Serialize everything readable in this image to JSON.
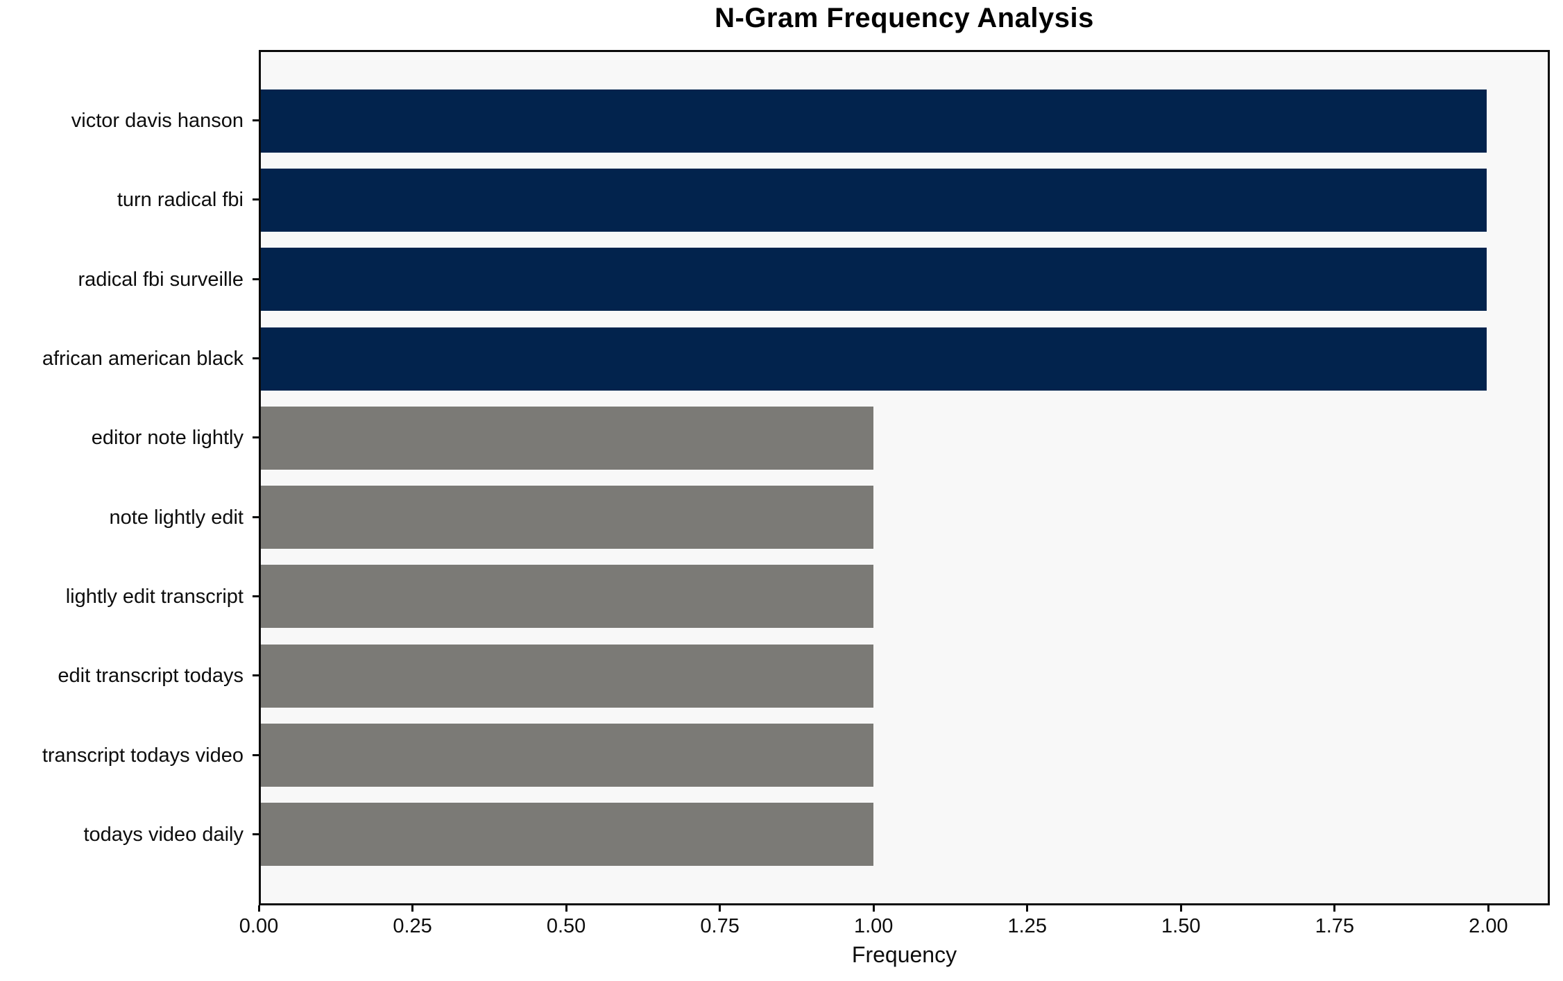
{
  "chart_data": {
    "type": "bar",
    "orientation": "horizontal",
    "title": "N-Gram Frequency Analysis",
    "xlabel": "Frequency",
    "ylabel": "",
    "categories": [
      "victor davis hanson",
      "turn radical fbi",
      "radical fbi surveille",
      "african american black",
      "editor note lightly",
      "note lightly edit",
      "lightly edit transcript",
      "edit transcript todays",
      "transcript todays video",
      "todays video daily"
    ],
    "values": [
      2,
      2,
      2,
      2,
      1,
      1,
      1,
      1,
      1,
      1
    ],
    "bar_colors": [
      "#02234d",
      "#02234d",
      "#02234d",
      "#02234d",
      "#7b7a76",
      "#7b7a76",
      "#7b7a76",
      "#7b7a76",
      "#7b7a76",
      "#7b7a76"
    ],
    "xlim": [
      0,
      2.1
    ],
    "xticks": [
      0,
      0.25,
      0.5,
      0.75,
      1.0,
      1.25,
      1.5,
      1.75,
      2.0
    ],
    "xtick_labels": [
      "0.00",
      "0.25",
      "0.50",
      "0.75",
      "1.00",
      "1.25",
      "1.50",
      "1.75",
      "2.00"
    ],
    "grid": false,
    "legend": null,
    "colors": {
      "highlight_bar": "#02234d",
      "normal_bar": "#7b7a76",
      "plot_background": "#f8f8f8",
      "figure_background": "#ffffff",
      "frame": "#0a0a0a"
    }
  }
}
